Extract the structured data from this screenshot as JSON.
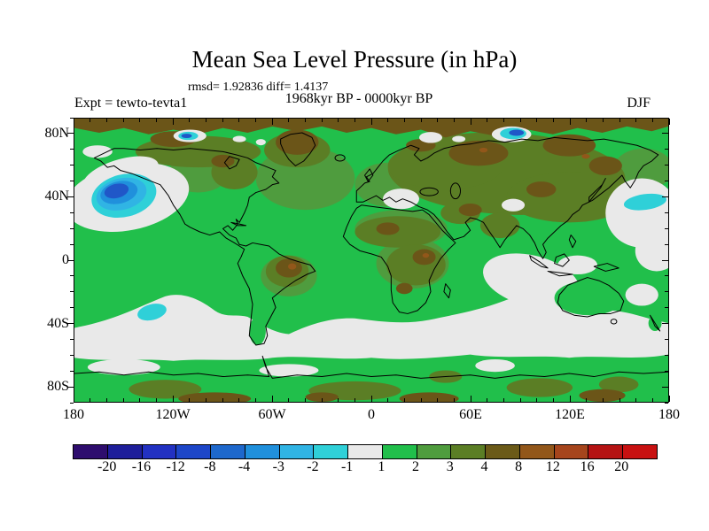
{
  "header": {
    "title": "Mean Sea Level Pressure (in hPa)",
    "stats": "rmsd= 1.92836 diff= 1.4137",
    "period": "1968kyr BP - 0000kyr BP",
    "experiment": "Expt = tewto-tevta1",
    "season": "DJF"
  },
  "axes": {
    "y_labels": [
      "80N",
      "40N",
      "0",
      "40S",
      "80S"
    ],
    "x_labels": [
      "180",
      "120W",
      "60W",
      "0",
      "60E",
      "120E",
      "180"
    ]
  },
  "colorbar": {
    "boundary_labels": [
      "-20",
      "-16",
      "-12",
      "-8",
      "-4",
      "-3",
      "-2",
      "-1",
      "1",
      "2",
      "3",
      "4",
      "8",
      "12",
      "16",
      "20"
    ],
    "colors": [
      "#2e0d6e",
      "#1e1e9a",
      "#2231c2",
      "#1d46c8",
      "#1e68cc",
      "#2090dc",
      "#30b4e4",
      "#2fd0d8",
      "#e9e9e9",
      "#21bf4b",
      "#4f9c3e",
      "#5b7e25",
      "#6b5a18",
      "#92571a",
      "#a6451c",
      "#b51313",
      "#c81111"
    ]
  },
  "chart_data": {
    "type": "heatmap",
    "title": "Mean Sea Level Pressure (in hPa)",
    "subtitle": "1968kyr BP - 0000kyr BP",
    "experiment": "tewto-tevta1",
    "season": "DJF",
    "rmsd": 1.92836,
    "diff": 1.4137,
    "units": "hPa",
    "projection": "equirectangular world map, lon 180W to 180E, lat 90S to 90N, coastlines overlaid",
    "contour_levels": [
      -20,
      -16,
      -12,
      -8,
      -4,
      -3,
      -2,
      -1,
      1,
      2,
      3,
      4,
      8,
      12,
      16,
      20
    ],
    "palette": [
      "#2e0d6e",
      "#1e1e9a",
      "#2231c2",
      "#1d46c8",
      "#1e68cc",
      "#2090dc",
      "#30b4e4",
      "#2fd0d8",
      "#e9e9e9",
      "#21bf4b",
      "#4f9c3e",
      "#5b7e25",
      "#6b5a18",
      "#92571a",
      "#a6451c",
      "#b51313",
      "#c81111"
    ],
    "x_axis": {
      "tick_labels": [
        "180",
        "120W",
        "60W",
        "0",
        "60E",
        "120E",
        "180"
      ],
      "minor_tick_interval_deg": 10
    },
    "y_axis": {
      "tick_labels": [
        "80N",
        "40N",
        "0",
        "40S",
        "80S"
      ],
      "minor_tick_interval_deg": 10
    },
    "legend_position": "bottom horizontal colorbar",
    "notable_features": [
      {
        "region": "North Pacific (~150W, 45N)",
        "value": "negative anomaly bullseye, core -4 to -8 hPa, rings -3, -2, -1"
      },
      {
        "region": "Kara Sea Arctic (~85E, 80N)",
        "value": "negative anomaly core -4 to -8 hPa with white ring"
      },
      {
        "region": "Canadian Arctic (~110W, 78N)",
        "value": "negative anomaly -2 to -4 hPa with white ring"
      },
      {
        "region": "Arctic rim, northern Siberia, Greenland",
        "value": "+4 to +8 hPa (brown)"
      },
      {
        "region": "Eurasian interior, Africa interior, Amazon",
        "value": "+2 to +4 hPa (olive green)"
      },
      {
        "region": "Most tropics and continents",
        "value": "+1 to +2 hPa (bright green)"
      },
      {
        "region": "Southern Ocean 40S-60S band, NW Pacific, Indian Ocean, Mediterranean",
        "value": "-1 to +1 hPa (white/gray)"
      },
      {
        "region": "SE Pacific (~130W, 33S) and east of Japan (~165E, 37N)",
        "value": "-1 to -2 hPa (cyan)"
      }
    ]
  }
}
